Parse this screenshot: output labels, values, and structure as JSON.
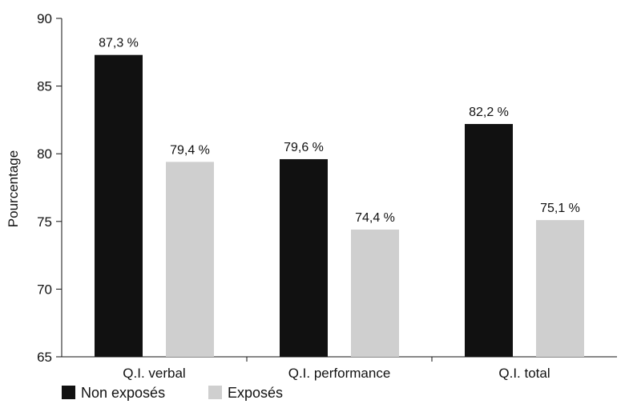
{
  "chart_data": {
    "type": "bar",
    "title": "",
    "xlabel": "",
    "ylabel": "Pourcentage",
    "ylim": [
      65,
      90
    ],
    "yticks": [
      65,
      70,
      75,
      80,
      85,
      90
    ],
    "grid": false,
    "legend_position": "bottom-left",
    "categories": [
      "Q.I. verbal",
      "Q.I. performance",
      "Q.I. total"
    ],
    "series": [
      {
        "name": "Non exposés",
        "color": "#111111",
        "values": [
          87.3,
          79.6,
          82.2
        ],
        "labels": [
          "87,3 %",
          "79,6 %",
          "82,2 %"
        ]
      },
      {
        "name": "Exposés",
        "color": "#cfcfcf",
        "values": [
          79.4,
          74.4,
          75.1
        ],
        "labels": [
          "79,4 %",
          "74,4 %",
          "75,1 %"
        ]
      }
    ]
  }
}
